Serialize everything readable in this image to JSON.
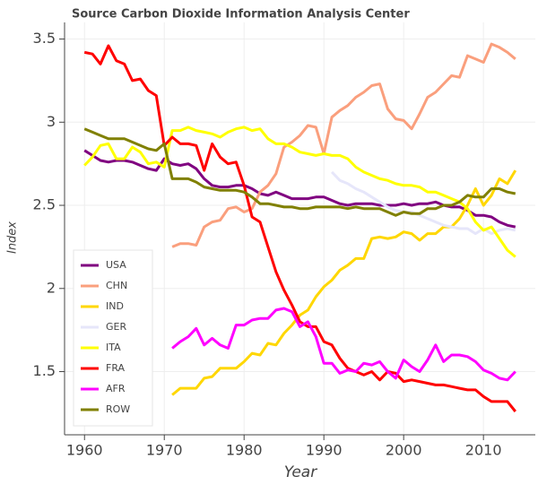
{
  "chart_data": {
    "type": "line",
    "title": "Source Carbon Dioxide Information Analysis Center",
    "x_label": "Year",
    "y_label": "Index",
    "x": [
      1960,
      1961,
      1962,
      1963,
      1964,
      1965,
      1966,
      1967,
      1968,
      1969,
      1970,
      1971,
      1972,
      1973,
      1974,
      1975,
      1976,
      1977,
      1978,
      1979,
      1980,
      1981,
      1982,
      1983,
      1984,
      1985,
      1986,
      1987,
      1988,
      1989,
      1990,
      1991,
      1992,
      1993,
      1994,
      1995,
      1996,
      1997,
      1998,
      1999,
      2000,
      2001,
      2002,
      2003,
      2004,
      2005,
      2006,
      2007,
      2008,
      2009,
      2010,
      2011,
      2012,
      2013,
      2014
    ],
    "series": [
      {
        "name": "USA",
        "color": "#800080",
        "values": [
          2.83,
          2.8,
          2.77,
          2.76,
          2.77,
          2.77,
          2.76,
          2.74,
          2.72,
          2.71,
          2.78,
          2.75,
          2.74,
          2.75,
          2.72,
          2.66,
          2.62,
          2.61,
          2.61,
          2.62,
          2.62,
          2.6,
          2.57,
          2.56,
          2.58,
          2.56,
          2.54,
          2.54,
          2.54,
          2.55,
          2.55,
          2.53,
          2.51,
          2.5,
          2.51,
          2.51,
          2.51,
          2.5,
          2.5,
          2.5,
          2.51,
          2.5,
          2.51,
          2.51,
          2.52,
          2.5,
          2.49,
          2.49,
          2.47,
          2.44,
          2.44,
          2.43,
          2.4,
          2.38,
          2.37
        ]
      },
      {
        "name": "CHN",
        "color": "#fa9f7d",
        "values": [
          null,
          null,
          null,
          null,
          null,
          null,
          null,
          null,
          null,
          null,
          null,
          2.25,
          2.27,
          2.27,
          2.26,
          2.37,
          2.4,
          2.41,
          2.48,
          2.49,
          2.46,
          2.48,
          2.58,
          2.62,
          2.69,
          2.85,
          2.88,
          2.92,
          2.98,
          2.97,
          2.81,
          3.03,
          3.07,
          3.1,
          3.15,
          3.18,
          3.22,
          3.23,
          3.08,
          3.02,
          3.01,
          2.96,
          3.05,
          3.15,
          3.18,
          3.23,
          3.28,
          3.27,
          3.4,
          3.38,
          3.36,
          3.47,
          3.45,
          3.42,
          3.38
        ]
      },
      {
        "name": "IND",
        "color": "#ffd700",
        "values": [
          null,
          null,
          null,
          null,
          null,
          null,
          null,
          null,
          null,
          null,
          null,
          1.36,
          1.4,
          1.4,
          1.4,
          1.46,
          1.47,
          1.52,
          1.52,
          1.52,
          1.56,
          1.61,
          1.6,
          1.67,
          1.66,
          1.73,
          1.78,
          1.84,
          1.87,
          1.95,
          2.01,
          2.05,
          2.11,
          2.14,
          2.18,
          2.18,
          2.3,
          2.31,
          2.3,
          2.31,
          2.34,
          2.33,
          2.29,
          2.33,
          2.33,
          2.37,
          2.37,
          2.42,
          2.5,
          2.6,
          2.5,
          2.56,
          2.66,
          2.63,
          2.71
        ]
      },
      {
        "name": "GER",
        "color": "#e6e6fa",
        "values": [
          null,
          null,
          null,
          null,
          null,
          null,
          null,
          null,
          null,
          null,
          null,
          null,
          null,
          null,
          null,
          null,
          null,
          null,
          null,
          null,
          null,
          null,
          null,
          null,
          null,
          null,
          null,
          null,
          null,
          null,
          null,
          2.7,
          2.65,
          2.63,
          2.6,
          2.58,
          2.55,
          2.52,
          2.49,
          2.47,
          2.46,
          2.46,
          2.44,
          2.42,
          2.4,
          2.38,
          2.37,
          2.36,
          2.36,
          2.33,
          2.36,
          2.33,
          2.35,
          2.36,
          2.35
        ]
      },
      {
        "name": "ITA",
        "color": "#ffff00",
        "values": [
          2.74,
          2.79,
          2.86,
          2.87,
          2.78,
          2.78,
          2.85,
          2.82,
          2.75,
          2.76,
          2.73,
          2.95,
          2.95,
          2.97,
          2.95,
          2.94,
          2.93,
          2.91,
          2.94,
          2.96,
          2.97,
          2.95,
          2.96,
          2.9,
          2.87,
          2.87,
          2.85,
          2.82,
          2.81,
          2.8,
          2.81,
          2.8,
          2.8,
          2.78,
          2.73,
          2.7,
          2.68,
          2.66,
          2.65,
          2.63,
          2.62,
          2.62,
          2.61,
          2.58,
          2.58,
          2.56,
          2.54,
          2.52,
          2.48,
          2.4,
          2.35,
          2.37,
          2.3,
          2.23,
          2.19
        ]
      },
      {
        "name": "FRA",
        "color": "#ff0000",
        "values": [
          3.42,
          3.41,
          3.35,
          3.46,
          3.37,
          3.35,
          3.25,
          3.26,
          3.19,
          3.16,
          2.86,
          2.91,
          2.87,
          2.87,
          2.86,
          2.71,
          2.87,
          2.79,
          2.75,
          2.76,
          2.62,
          2.43,
          2.4,
          2.25,
          2.1,
          1.99,
          1.9,
          1.8,
          1.77,
          1.77,
          1.68,
          1.66,
          1.58,
          1.52,
          1.5,
          1.48,
          1.5,
          1.45,
          1.5,
          1.49,
          1.44,
          1.45,
          1.44,
          1.43,
          1.42,
          1.42,
          1.41,
          1.4,
          1.39,
          1.39,
          1.35,
          1.32,
          1.32,
          1.32,
          1.26
        ]
      },
      {
        "name": "AFR",
        "color": "#ff00ff",
        "values": [
          null,
          null,
          null,
          null,
          null,
          null,
          null,
          null,
          null,
          null,
          null,
          1.64,
          1.68,
          1.71,
          1.76,
          1.66,
          1.7,
          1.66,
          1.64,
          1.78,
          1.78,
          1.81,
          1.82,
          1.82,
          1.87,
          1.88,
          1.86,
          1.77,
          1.8,
          1.71,
          1.55,
          1.55,
          1.49,
          1.51,
          1.5,
          1.55,
          1.54,
          1.56,
          1.5,
          1.46,
          1.57,
          1.53,
          1.5,
          1.57,
          1.66,
          1.56,
          1.6,
          1.6,
          1.59,
          1.56,
          1.51,
          1.49,
          1.46,
          1.45,
          1.5
        ]
      },
      {
        "name": "ROW",
        "color": "#808000",
        "values": [
          2.96,
          2.94,
          2.92,
          2.9,
          2.9,
          2.9,
          2.88,
          2.86,
          2.84,
          2.83,
          2.87,
          2.66,
          2.66,
          2.66,
          2.64,
          2.61,
          2.6,
          2.59,
          2.59,
          2.59,
          2.58,
          2.55,
          2.51,
          2.51,
          2.5,
          2.49,
          2.49,
          2.48,
          2.48,
          2.49,
          2.49,
          2.49,
          2.49,
          2.48,
          2.49,
          2.48,
          2.48,
          2.48,
          2.46,
          2.44,
          2.46,
          2.45,
          2.45,
          2.48,
          2.48,
          2.5,
          2.5,
          2.52,
          2.56,
          2.55,
          2.55,
          2.6,
          2.6,
          2.58,
          2.57
        ]
      }
    ],
    "xlim": [
      1957.5,
      2016.5
    ],
    "ylim": [
      1.12,
      3.6
    ],
    "xticks": [
      1960,
      1970,
      1980,
      1990,
      2000,
      2010
    ],
    "yticks": [
      1.5,
      2,
      2.5,
      3,
      3.5
    ],
    "grid": true,
    "legend": "bottom_left"
  }
}
